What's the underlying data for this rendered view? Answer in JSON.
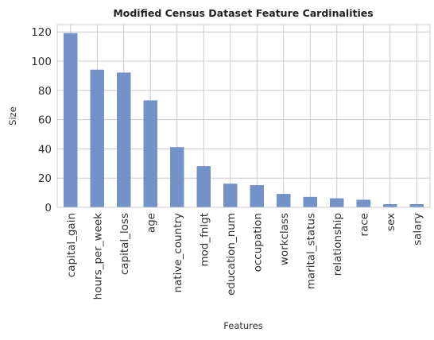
{
  "chart_data": {
    "type": "bar",
    "title": "Modified Census Dataset Feature Cardinalities",
    "xlabel": "Features",
    "ylabel": "Size",
    "categories": [
      "capital_gain",
      "hours_per_week",
      "capital_loss",
      "age",
      "native_country",
      "mod_fnlgt",
      "education_num",
      "occupation",
      "workclass",
      "marital_status",
      "relationship",
      "race",
      "sex",
      "salary"
    ],
    "values": [
      119,
      94,
      92,
      73,
      41,
      28,
      16,
      15,
      9,
      7,
      6,
      5,
      2,
      2
    ],
    "ylim": [
      0,
      125
    ],
    "yticks": [
      0,
      20,
      40,
      60,
      80,
      100,
      120
    ],
    "grid": true,
    "legend": "none",
    "bar_color": "#7393c8",
    "bar_edge_color": "#6a8bc0"
  }
}
